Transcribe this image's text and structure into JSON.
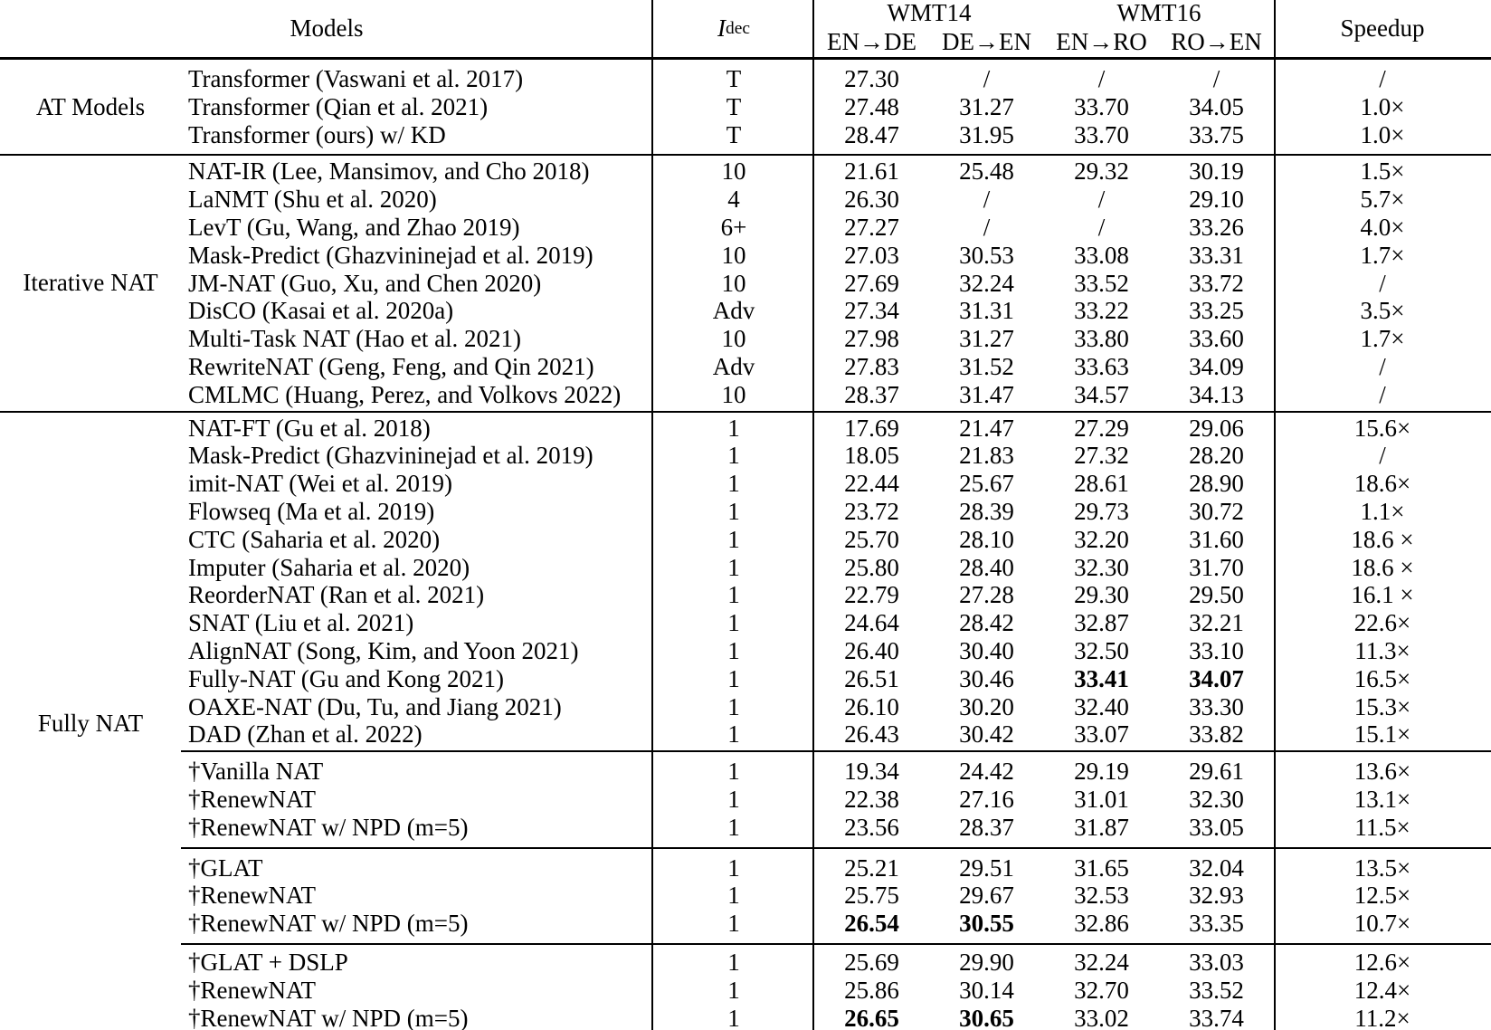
{
  "table": {
    "header": {
      "models_label": "Models",
      "idec_main": "I",
      "idec_sub": "dec",
      "group1": "WMT14",
      "group2": "WMT16",
      "subcols": [
        "EN→DE",
        "DE→EN",
        "EN→RO",
        "RO→EN"
      ],
      "speedup_label": "Speedup"
    },
    "colors": {
      "text": "#000000",
      "background": "#ffffff",
      "rules": "#000000"
    },
    "sections": [
      {
        "group": "AT Models",
        "subgroups": [
          {
            "pad": "pad6",
            "rows": [
              {
                "model": "Transformer (Vaswani et al. 2017)",
                "idec": "T",
                "scores": [
                  "27.30",
                  "/",
                  "/",
                  "/"
                ],
                "speedup": "/"
              },
              {
                "model": "Transformer (Qian et al. 2021)",
                "idec": "T",
                "scores": [
                  "27.48",
                  "31.27",
                  "33.70",
                  "34.05"
                ],
                "speedup": "1.0×"
              },
              {
                "model": "Transformer (ours) w/ KD",
                "idec": "T",
                "scores": [
                  "28.47",
                  "31.95",
                  "33.70",
                  "33.75"
                ],
                "speedup": "1.0×"
              }
            ]
          }
        ]
      },
      {
        "group": "Iterative NAT",
        "subgroups": [
          {
            "pad": "",
            "rows": [
              {
                "model": "NAT-IR (Lee, Mansimov, and Cho 2018)",
                "idec": "10",
                "scores": [
                  "21.61",
                  "25.48",
                  "29.32",
                  "30.19"
                ],
                "speedup": "1.5×"
              },
              {
                "model": "LaNMT (Shu et al. 2020)",
                "idec": "4",
                "scores": [
                  "26.30",
                  "/",
                  "/",
                  "29.10"
                ],
                "speedup": "5.7×"
              },
              {
                "model": "LevT (Gu, Wang, and Zhao 2019)",
                "idec": "6+",
                "scores": [
                  "27.27",
                  "/",
                  "/",
                  "33.26"
                ],
                "speedup": "4.0×"
              },
              {
                "model": "Mask-Predict (Ghazvininejad et al. 2019)",
                "idec": "10",
                "scores": [
                  "27.03",
                  "30.53",
                  "33.08",
                  "33.31"
                ],
                "speedup": "1.7×"
              },
              {
                "model": "JM-NAT (Guo, Xu, and Chen 2020)",
                "idec": "10",
                "scores": [
                  "27.69",
                  "32.24",
                  "33.52",
                  "33.72"
                ],
                "speedup": "/"
              },
              {
                "model": "DisCO (Kasai et al. 2020a)",
                "idec": "Adv",
                "scores": [
                  "27.34",
                  "31.31",
                  "33.22",
                  "33.25"
                ],
                "speedup": "3.5×"
              },
              {
                "model": "Multi-Task NAT (Hao et al. 2021)",
                "idec": "10",
                "scores": [
                  "27.98",
                  "31.27",
                  "33.80",
                  "33.60"
                ],
                "speedup": "1.7×"
              },
              {
                "model": "RewriteNAT (Geng, Feng, and Qin 2021)",
                "idec": "Adv",
                "scores": [
                  "27.83",
                  "31.52",
                  "33.63",
                  "34.09"
                ],
                "speedup": "/"
              },
              {
                "model": "CMLMC (Huang, Perez, and Volkovs 2022)",
                "idec": "10",
                "scores": [
                  "28.37",
                  "31.47",
                  "34.57",
                  "34.13"
                ],
                "speedup": "/"
              }
            ]
          }
        ]
      },
      {
        "group": "Fully NAT",
        "subgroups": [
          {
            "pad": "",
            "rows": [
              {
                "model": "NAT-FT (Gu et al. 2018)",
                "idec": "1",
                "scores": [
                  "17.69",
                  "21.47",
                  "27.29",
                  "29.06"
                ],
                "speedup": "15.6×"
              },
              {
                "model": "Mask-Predict (Ghazvininejad et al. 2019)",
                "idec": "1",
                "scores": [
                  "18.05",
                  "21.83",
                  "27.32",
                  "28.20"
                ],
                "speedup": "/"
              },
              {
                "model": "imit-NAT (Wei et al. 2019)",
                "idec": "1",
                "scores": [
                  "22.44",
                  "25.67",
                  "28.61",
                  "28.90"
                ],
                "speedup": "18.6×"
              },
              {
                "model": "Flowseq (Ma et al. 2019)",
                "idec": "1",
                "scores": [
                  "23.72",
                  "28.39",
                  "29.73",
                  "30.72"
                ],
                "speedup": "1.1×"
              },
              {
                "model": "CTC (Saharia et al. 2020)",
                "idec": "1",
                "scores": [
                  "25.70",
                  "28.10",
                  "32.20",
                  "31.60"
                ],
                "speedup": "18.6 ×"
              },
              {
                "model": "Imputer (Saharia et al. 2020)",
                "idec": "1",
                "scores": [
                  "25.80",
                  "28.40",
                  "32.30",
                  "31.70"
                ],
                "speedup": "18.6 ×"
              },
              {
                "model": "ReorderNAT (Ran et al. 2021)",
                "idec": "1",
                "scores": [
                  "22.79",
                  "27.28",
                  "29.30",
                  "29.50"
                ],
                "speedup": "16.1 ×"
              },
              {
                "model": "SNAT (Liu et al. 2021)",
                "idec": "1",
                "scores": [
                  "24.64",
                  "28.42",
                  "32.87",
                  "32.21"
                ],
                "speedup": "22.6×"
              },
              {
                "model": "AlignNAT (Song, Kim, and Yoon 2021)",
                "idec": "1",
                "scores": [
                  "26.40",
                  "30.40",
                  "32.50",
                  "33.10"
                ],
                "speedup": "11.3×"
              },
              {
                "model": "Fully-NAT (Gu and Kong 2021)",
                "idec": "1",
                "scores": [
                  "26.51",
                  "30.46",
                  "33.41",
                  "34.07"
                ],
                "bold": [
                  false,
                  false,
                  true,
                  true
                ],
                "speedup": "16.5×"
              },
              {
                "model": "OAXE-NAT (Du, Tu, and Jiang 2021)",
                "idec": "1",
                "scores": [
                  "26.10",
                  "30.20",
                  "32.40",
                  "33.30"
                ],
                "speedup": "15.3×"
              },
              {
                "model": "DAD (Zhan et al. 2022)",
                "idec": "1",
                "scores": [
                  "26.43",
                  "30.42",
                  "33.07",
                  "33.82"
                ],
                "speedup": "15.1×"
              }
            ]
          },
          {
            "pad": "pad6",
            "rows": [
              {
                "model": "†Vanilla NAT",
                "idec": "1",
                "scores": [
                  "19.34",
                  "24.42",
                  "29.19",
                  "29.61"
                ],
                "speedup": "13.6×"
              },
              {
                "model": "†RenewNAT",
                "idec": "1",
                "scores": [
                  "22.38",
                  "27.16",
                  "31.01",
                  "32.30"
                ],
                "speedup": "13.1×"
              },
              {
                "model": "†RenewNAT w/ NPD (m=5)",
                "idec": "1",
                "scores": [
                  "23.56",
                  "28.37",
                  "31.87",
                  "33.05"
                ],
                "speedup": "11.5×"
              }
            ]
          },
          {
            "pad": "pad6",
            "rows": [
              {
                "model": "†GLAT",
                "idec": "1",
                "scores": [
                  "25.21",
                  "29.51",
                  "31.65",
                  "32.04"
                ],
                "speedup": "13.5×"
              },
              {
                "model": "†RenewNAT",
                "idec": "1",
                "scores": [
                  "25.75",
                  "29.67",
                  "32.53",
                  "32.93"
                ],
                "speedup": "12.5×"
              },
              {
                "model": "†RenewNAT w/ NPD (m=5)",
                "idec": "1",
                "scores": [
                  "26.54",
                  "30.55",
                  "32.86",
                  "33.35"
                ],
                "bold": [
                  true,
                  true,
                  false,
                  false
                ],
                "speedup": "10.7×"
              }
            ]
          },
          {
            "pad": "pad4",
            "rows": [
              {
                "model": "†GLAT + DSLP",
                "idec": "1",
                "scores": [
                  "25.69",
                  "29.90",
                  "32.24",
                  "33.03"
                ],
                "speedup": "12.6×"
              },
              {
                "model": "†RenewNAT",
                "idec": "1",
                "scores": [
                  "25.86",
                  "30.14",
                  "32.70",
                  "33.52"
                ],
                "speedup": "12.4×"
              },
              {
                "model": "†RenewNAT w/ NPD (m=5)",
                "idec": "1",
                "scores": [
                  "26.65",
                  "30.65",
                  "33.02",
                  "33.74"
                ],
                "bold": [
                  true,
                  true,
                  false,
                  false
                ],
                "speedup": "11.2×"
              }
            ]
          }
        ]
      }
    ]
  }
}
